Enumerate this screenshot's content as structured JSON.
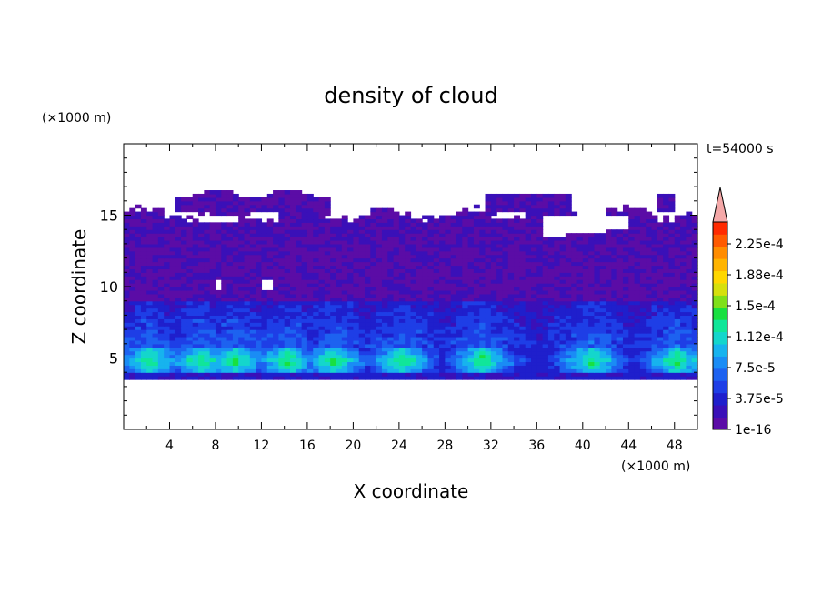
{
  "chart_data": {
    "type": "heatmap",
    "title": "density of cloud",
    "time_label": "t=54000 s",
    "xlabel": "X coordinate",
    "ylabel": "Z coordinate",
    "x_unit": "(×1000 m)",
    "y_unit": "(×1000 m)",
    "xlim": [
      0,
      50
    ],
    "ylim": [
      0,
      20
    ],
    "x_ticks": [
      "4",
      "8",
      "12",
      "16",
      "20",
      "24",
      "28",
      "32",
      "36",
      "40",
      "44",
      "48"
    ],
    "y_ticks": [
      "5",
      "10",
      "15"
    ],
    "colorbar": {
      "labels": [
        "2.25e-4",
        "1.88e-4",
        "1.5e-4",
        "1.12e-4",
        "7.5e-5",
        "3.75e-5",
        "1e-16"
      ],
      "colors": [
        "#5b0ca6",
        "#3a10b8",
        "#1f1fcc",
        "#1e3ee6",
        "#1d62f0",
        "#1a8cf5",
        "#17b3ee",
        "#14d6cc",
        "#10e699",
        "#19e040",
        "#7fe01a",
        "#d6e00d",
        "#ffd700",
        "#ffb400",
        "#ff8c00",
        "#ff5a00",
        "#ff2a00"
      ],
      "extend_color": "#f5a8a8"
    },
    "cloud_layer": {
      "x_range": [
        0,
        50
      ],
      "z_base": 3.5,
      "z_top": 15,
      "dense_band_z": [
        4,
        5.5
      ],
      "dense_centers_x": [
        2,
        6.5,
        9.5,
        14,
        18,
        24,
        31,
        40.5,
        48
      ]
    }
  }
}
